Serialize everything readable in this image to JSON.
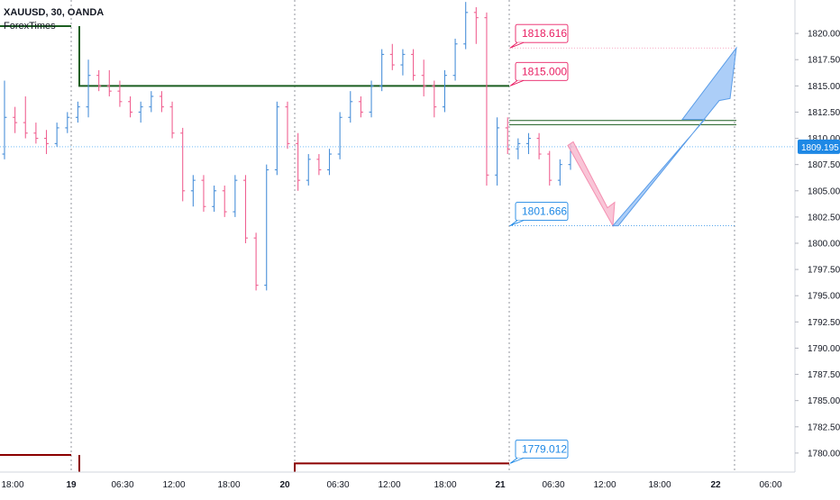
{
  "header": {
    "symbol_line": "XAUUSD, 30, OANDA",
    "brand": "ForexTimes"
  },
  "colors": {
    "up": "#4a90d9",
    "down": "#f06292",
    "green": "#1b5e20",
    "darkred": "#8b0000",
    "label_red": "#e91e63",
    "label_blue": "#1e88e5",
    "price_tag": "#1e88e5",
    "arrow_blue": "#90bdf5",
    "arrow_pink": "#f8bbd0"
  },
  "chart_data": {
    "type": "candlestick",
    "symbol": "XAUUSD",
    "timeframe": "30",
    "broker": "OANDA",
    "ylim": [
      1777.5,
      1822.5
    ],
    "y_ticks": [
      "1820.000",
      "1817.500",
      "1815.000",
      "1812.500",
      "1810.000",
      "1807.500",
      "1805.000",
      "1802.500",
      "1800.000",
      "1797.500",
      "1795.000",
      "1792.500",
      "1790.000",
      "1787.500",
      "1785.000",
      "1782.500",
      "1780.000"
    ],
    "x_ticks": [
      "18:00",
      "19",
      "06:30",
      "12:00",
      "18:00",
      "20",
      "06:30",
      "12:00",
      "18:00",
      "21",
      "06:30",
      "12:00",
      "18:00",
      "22",
      "06:00"
    ],
    "last_price": "1809.195",
    "levels": [
      {
        "label": "1818.616",
        "value": 1818.616,
        "kind": "target"
      },
      {
        "label": "1815.000",
        "value": 1815.0,
        "kind": "resistance"
      },
      {
        "label": "1801.666",
        "value": 1801.666,
        "kind": "support"
      },
      {
        "label": "1779.012",
        "value": 1779.012,
        "kind": "low"
      }
    ],
    "zone": [
      1811.3,
      1811.7
    ],
    "candles": [
      [
        1808.5,
        1815.5,
        1808.0,
        1812.0
      ],
      [
        1812.0,
        1813.0,
        1810.5,
        1811.5
      ],
      [
        1811.5,
        1814.0,
        1810.0,
        1810.5
      ],
      [
        1810.5,
        1811.5,
        1809.5,
        1810.0
      ],
      [
        1810.0,
        1810.8,
        1808.5,
        1809.5
      ],
      [
        1809.5,
        1811.5,
        1809.2,
        1811.0
      ],
      [
        1811.0,
        1812.5,
        1810.5,
        1812.0
      ],
      [
        1812.0,
        1813.5,
        1811.5,
        1813.0
      ],
      [
        1813.0,
        1817.5,
        1812.0,
        1816.0
      ],
      [
        1816.0,
        1816.5,
        1814.5,
        1815.0
      ],
      [
        1815.0,
        1816.5,
        1814.0,
        1814.5
      ],
      [
        1814.5,
        1815.5,
        1813.0,
        1813.5
      ],
      [
        1813.5,
        1814.0,
        1812.0,
        1812.5
      ],
      [
        1812.5,
        1813.5,
        1811.5,
        1813.0
      ],
      [
        1813.0,
        1814.5,
        1812.5,
        1814.0
      ],
      [
        1814.0,
        1814.5,
        1812.5,
        1813.0
      ],
      [
        1813.0,
        1813.5,
        1810.0,
        1810.5
      ],
      [
        1810.5,
        1811.0,
        1804.0,
        1805.0
      ],
      [
        1805.0,
        1806.5,
        1803.5,
        1806.0
      ],
      [
        1806.0,
        1806.5,
        1803.0,
        1803.5
      ],
      [
        1803.5,
        1805.5,
        1803.0,
        1805.0
      ],
      [
        1805.0,
        1805.5,
        1802.5,
        1803.0
      ],
      [
        1803.0,
        1806.5,
        1802.5,
        1806.0
      ],
      [
        1806.0,
        1806.5,
        1800.0,
        1800.5
      ],
      [
        1800.5,
        1801.0,
        1795.5,
        1796.0
      ],
      [
        1796.0,
        1807.5,
        1795.5,
        1807.0
      ],
      [
        1807.0,
        1813.5,
        1806.5,
        1813.0
      ],
      [
        1813.0,
        1813.5,
        1809.0,
        1809.5
      ],
      [
        1809.5,
        1810.5,
        1805.0,
        1806.0
      ],
      [
        1806.0,
        1808.5,
        1805.5,
        1808.0
      ],
      [
        1808.0,
        1808.5,
        1806.5,
        1807.0
      ],
      [
        1807.0,
        1809.0,
        1806.5,
        1808.5
      ],
      [
        1808.5,
        1812.5,
        1808.0,
        1812.0
      ],
      [
        1812.0,
        1814.5,
        1811.5,
        1813.5
      ],
      [
        1813.5,
        1814.0,
        1812.0,
        1812.5
      ],
      [
        1812.5,
        1815.5,
        1812.0,
        1815.0
      ],
      [
        1815.0,
        1818.5,
        1814.5,
        1818.0
      ],
      [
        1818.0,
        1819.0,
        1816.5,
        1817.0
      ],
      [
        1817.0,
        1818.5,
        1816.0,
        1818.0
      ],
      [
        1818.0,
        1818.5,
        1815.5,
        1816.0
      ],
      [
        1816.0,
        1817.5,
        1814.0,
        1815.0
      ],
      [
        1815.0,
        1815.5,
        1812.0,
        1813.0
      ],
      [
        1813.0,
        1816.5,
        1812.5,
        1816.0
      ],
      [
        1816.0,
        1819.5,
        1815.5,
        1819.0
      ],
      [
        1819.0,
        1823.0,
        1818.5,
        1822.0
      ],
      [
        1822.0,
        1822.5,
        1819.0,
        1821.5
      ],
      [
        1821.5,
        1822.0,
        1805.5,
        1806.5
      ],
      [
        1806.5,
        1812.0,
        1805.5,
        1811.0
      ],
      [
        1811.0,
        1812.0,
        1808.5,
        1809.0
      ],
      [
        1809.0,
        1810.0,
        1808.0,
        1809.5
      ],
      [
        1809.5,
        1810.5,
        1808.5,
        1810.0
      ],
      [
        1810.0,
        1810.5,
        1808.0,
        1808.5
      ],
      [
        1808.5,
        1808.8,
        1805.5,
        1806.0
      ],
      [
        1806.0,
        1808.0,
        1805.5,
        1807.5
      ],
      [
        1807.5,
        1809.5,
        1807.0,
        1809.195
      ]
    ],
    "arrow_down": {
      "from": "last candle",
      "to": 1801.666
    },
    "arrow_up": {
      "from": 1801.666,
      "to": 1818.616
    }
  }
}
